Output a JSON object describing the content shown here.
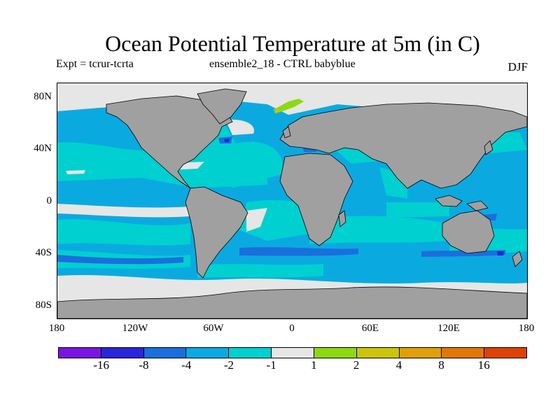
{
  "title": "Ocean Potential Temperature at 5m (in C)",
  "experiment": "Expt = tcrur-tcrta",
  "ensemble": "ensemble2_18 - CTRL babyblue",
  "season": "DJF",
  "lat_labels": [
    "80N",
    "40N",
    "0",
    "40S",
    "80S"
  ],
  "lon_labels": [
    "180",
    "120W",
    "60W",
    "0",
    "60E",
    "120E",
    "180"
  ],
  "colorbar": {
    "colors": [
      "#7b14e0",
      "#2a26d8",
      "#1a6fdc",
      "#0aaae0",
      "#00d0d0",
      "#e6e6e6",
      "#8ed812",
      "#ccc40c",
      "#e0a00a",
      "#e07808",
      "#dc4206"
    ],
    "labels": [
      "-16",
      "-8",
      "-4",
      "-2",
      "-1",
      "1",
      "2",
      "4",
      "8",
      "16"
    ]
  },
  "map_colors": {
    "land": "#a0a0a0",
    "no_data": "#e6e6e6",
    "cyan": "#00d0d0",
    "light_blue": "#0aaae0",
    "mid_blue": "#1a6fdc",
    "dark_blue": "#2a26d8",
    "green": "#8ed812",
    "yellow": "#ccc40c"
  }
}
